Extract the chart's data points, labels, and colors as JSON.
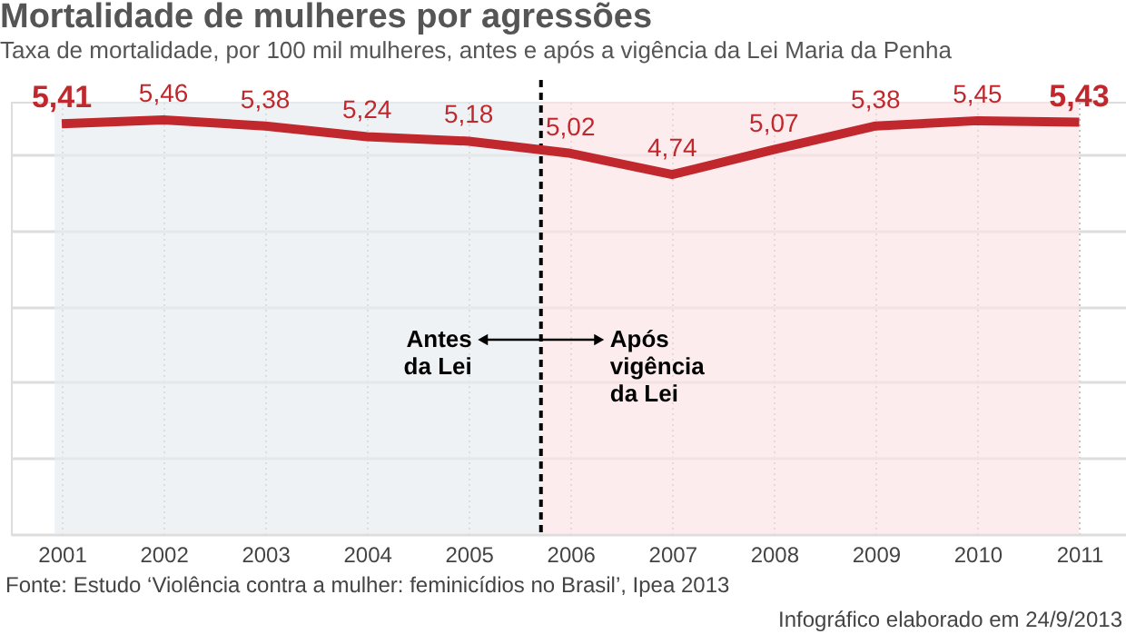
{
  "chart_data": {
    "type": "line",
    "title": "Mortalidade de mulheres por agressões",
    "subtitle": "Taxa de mortalidade, por 100 mil mulheres, antes e após a vigência da Lei Maria da Penha",
    "x": [
      2001,
      2002,
      2003,
      2004,
      2005,
      2006,
      2007,
      2008,
      2009,
      2010,
      2011
    ],
    "series": [
      {
        "color": "#c0282d",
        "values": [
          5.41,
          5.46,
          5.38,
          5.24,
          5.18,
          5.02,
          4.74,
          5.07,
          5.38,
          5.45,
          5.43
        ],
        "value_labels": [
          "5,41",
          "5,46",
          "5,38",
          "5,24",
          "5,18",
          "5,02",
          "4,74",
          "5,07",
          "5,38",
          "5,45",
          "5,43"
        ]
      }
    ],
    "xlim": [
      2000.5,
      2011.46
    ],
    "xticks": [
      2001,
      2002,
      2003,
      2004,
      2005,
      2006,
      2007,
      2008,
      2009,
      2010,
      2011
    ],
    "ylim": [
      0,
      5.7
    ],
    "yticks": [
      {
        "value": 0,
        "label": null
      },
      {
        "value": 1,
        "label": null
      },
      {
        "value": 2,
        "label": null
      },
      {
        "value": 3,
        "label": null
      },
      {
        "value": 4,
        "label": null
      },
      {
        "value": 5,
        "label": null
      }
    ],
    "tick_labels": "x",
    "grid": true,
    "ref_lines": [
      {
        "axis": "x",
        "value": 2005.71,
        "color": "#000000",
        "line_style": "dashed"
      }
    ],
    "bands": [
      {
        "axis": "x",
        "from": 2000.93,
        "to": 2005.71,
        "label": "Antes\nda Lei",
        "color": "#e8ecf0"
      },
      {
        "axis": "x",
        "from": 2005.71,
        "to": 2011.0,
        "label": "Após\nvigência\nda Lei",
        "color": "#fce4e6"
      }
    ],
    "annotations": [
      "Fonte: Estudo ‘Violência contra a mulher: feminicídios no Brasil’, Ipea 2013",
      "Infográfico elaborado em 24/9/2013"
    ]
  }
}
